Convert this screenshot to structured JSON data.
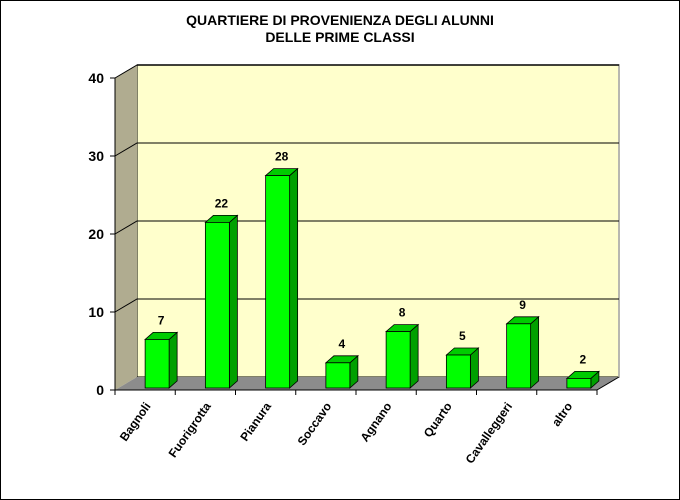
{
  "chart_data": {
    "type": "bar",
    "title": "QUARTIERE DI PROVENIENZA  DEGLI ALUNNI DELLE PRIME CLASSI",
    "title_lines": [
      "QUARTIERE DI PROVENIENZA  DEGLI ALUNNI",
      "DELLE PRIME CLASSI"
    ],
    "categories": [
      "Bagnoli",
      "Fuorigrotta",
      "Pianura",
      "Soccavo",
      "Agnano",
      "Quarto",
      "Cavalleggeri",
      "altro"
    ],
    "values": [
      7,
      22,
      28,
      4,
      8,
      5,
      9,
      2
    ],
    "xlabel": "",
    "ylabel": "",
    "ylim": [
      0,
      40
    ],
    "yticks": [
      0,
      10,
      20,
      30,
      40
    ],
    "grid": true,
    "legend": false,
    "data_labels": true,
    "style": "3d-column",
    "colors": {
      "bar_front": "#00ff00",
      "bar_side": "#00a000",
      "bar_top": "#00cc00",
      "wall": "#ffffcc",
      "side_wall": "#b0ac90",
      "floor": "#8c8c8c"
    }
  }
}
